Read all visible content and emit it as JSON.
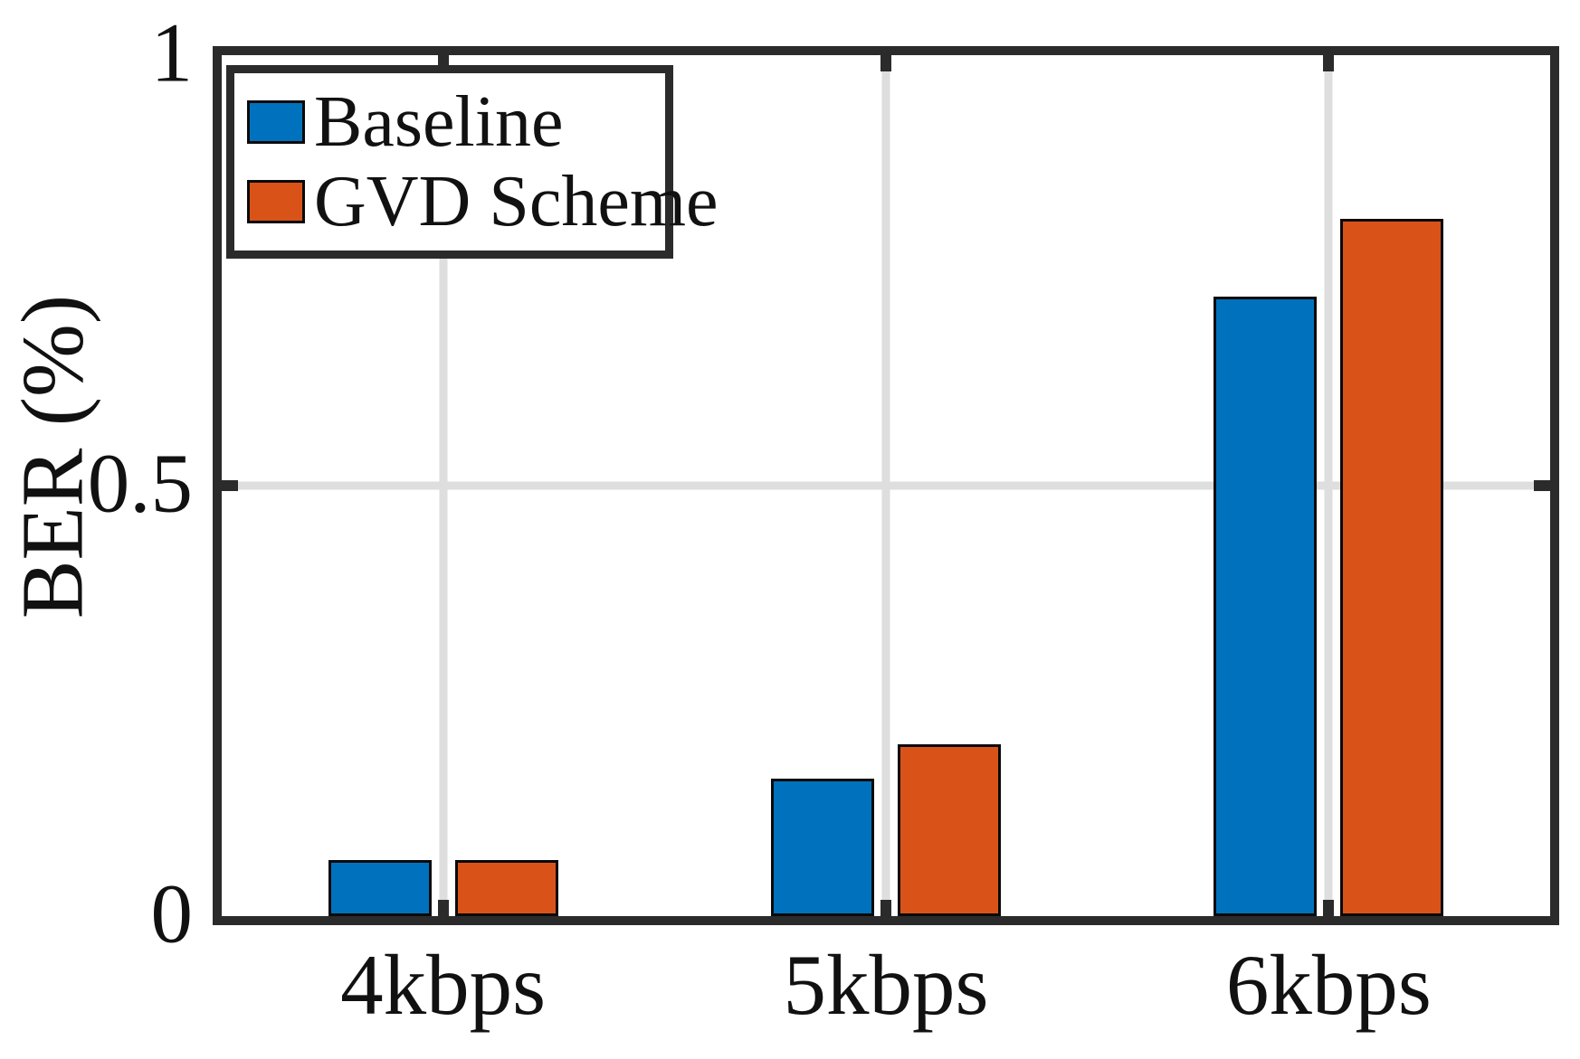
{
  "axes": {
    "ylabel": "BER (%)",
    "ytick_labels": [
      "0",
      "0.5",
      "1"
    ],
    "axis_color": "#2b2b2b",
    "grid_color": "#dedede",
    "background": "#ffffff",
    "text_color": "#111111"
  },
  "legend": {
    "items": [
      {
        "label": "Baseline",
        "color": "#0072BD"
      },
      {
        "label": "GVD Scheme",
        "color": "#D95319"
      }
    ]
  },
  "chart_data": {
    "type": "bar",
    "title": "",
    "xlabel": "",
    "ylabel": "BER (%)",
    "categories": [
      "4kbps",
      "5kbps",
      "6kbps"
    ],
    "series": [
      {
        "name": "Baseline",
        "color": "#0072BD",
        "values": [
          0.065,
          0.16,
          0.72
        ]
      },
      {
        "name": "GVD Scheme",
        "color": "#D95319",
        "values": [
          0.065,
          0.2,
          0.81
        ]
      }
    ],
    "ylim": [
      0,
      1
    ],
    "yticks": [
      0,
      0.5,
      1
    ],
    "ytick_labels": [
      "0",
      "0.5",
      "1"
    ],
    "grid": "on",
    "grid_x": "on",
    "grid_y_at": [
      0.5
    ],
    "legend_position": "top-left",
    "bar_edge_color": "#0a0a0a"
  }
}
